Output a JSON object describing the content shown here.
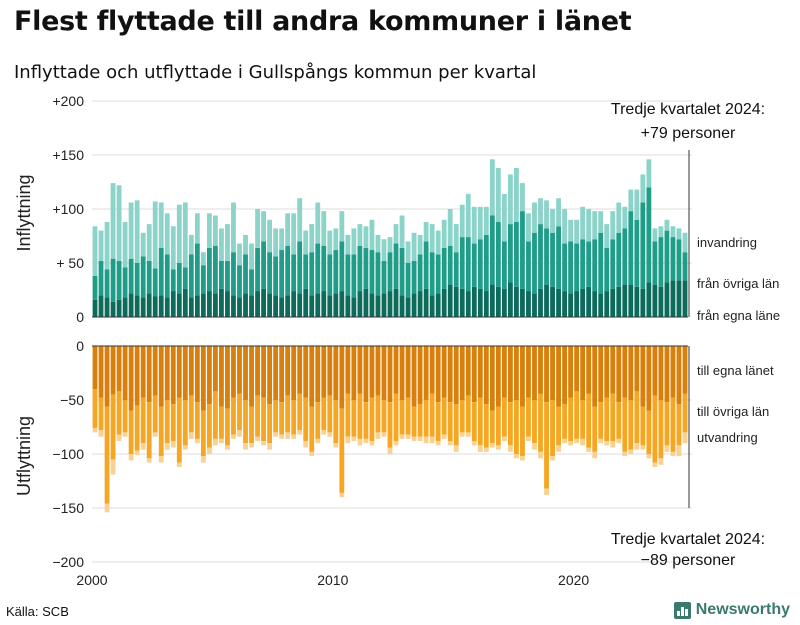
{
  "title": "Flest flyttade till andra kommuner i länet",
  "subtitle": "Inflyttade och utflyttade i Gullspångs kommun per kvartal",
  "source": "Källa: SCB",
  "brand": "Newsworthy",
  "chart_data": {
    "type": "bar",
    "stacked": true,
    "x_label": "",
    "x_ticks": [
      "2000",
      "2010",
      "2020"
    ],
    "y_ticks": [
      "+200",
      "+150",
      "+100",
      "+ 50",
      "0",
      "0",
      "−50",
      "−100",
      "−150",
      "−200"
    ],
    "ylim": [
      -200,
      200
    ],
    "start": "2000 Q1",
    "end": "2024 Q3",
    "panels": [
      {
        "ylabel": "Inflyttning",
        "colors": [
          "#0d6b5c",
          "#1f9d89",
          "#8cd3c9"
        ],
        "series": [
          {
            "name": "från egna läne",
            "values": [
              16,
              20,
              18,
              14,
              16,
              18,
              22,
              20,
              18,
              22,
              19,
              20,
              18,
              24,
              22,
              26,
              18,
              20,
              22,
              24,
              22,
              26,
              24,
              20,
              18,
              22,
              20,
              24,
              26,
              22,
              20,
              18,
              20,
              24,
              22,
              26,
              20,
              22,
              24,
              20,
              22,
              24,
              20,
              18,
              24,
              26,
              22,
              20,
              22,
              24,
              26,
              20,
              18,
              22,
              24,
              26,
              20,
              22,
              26,
              30,
              28,
              26,
              24,
              28,
              26,
              24,
              30,
              28,
              26,
              32,
              28,
              26,
              24,
              22,
              26,
              30,
              28,
              26,
              24,
              22,
              24,
              26,
              28,
              24,
              22,
              24,
              26,
              28,
              30,
              30,
              28,
              26,
              32,
              30,
              28,
              32,
              34,
              34,
              34
            ]
          },
          {
            "name": "från övriga län",
            "values": [
              22,
              32,
              26,
              40,
              36,
              28,
              32,
              30,
              38,
              30,
              26,
              44,
              40,
              20,
              28,
              20,
              40,
              48,
              26,
              40,
              44,
              26,
              28,
              40,
              30,
              36,
              24,
              40,
              44,
              38,
              36,
              44,
              46,
              34,
              48,
              32,
              40,
              46,
              42,
              38,
              40,
              46,
              38,
              40,
              42,
              38,
              40,
              40,
              30,
              36,
              42,
              44,
              32,
              30,
              34,
              44,
              40,
              36,
              38,
              36,
              32,
              48,
              50,
              40,
              46,
              52,
              64,
              60,
              44,
              54,
              60,
              72,
              46,
              56,
              60,
              52,
              50,
              58,
              44,
              48,
              44,
              46,
              42,
              48,
              56,
              40,
              46,
              50,
              52,
              68,
              62,
              80,
              88,
              40,
              46,
              48,
              40,
              38,
              26
            ]
          },
          {
            "name": "invandring",
            "values": [
              46,
              28,
              44,
              70,
              70,
              42,
              52,
              58,
              22,
              34,
              62,
              42,
              38,
              40,
              54,
              60,
              18,
              28,
              12,
              32,
              28,
              30,
              34,
              46,
              20,
              18,
              24,
              36,
              28,
              30,
              26,
              20,
              30,
              38,
              40,
              22,
              26,
              38,
              32,
              22,
              20,
              28,
              18,
              24,
              20,
              20,
              28,
              16,
              20,
              14,
              18,
              30,
              20,
              26,
              18,
              18,
              26,
              22,
              26,
              34,
              26,
              30,
              40,
              34,
              30,
              26,
              52,
              50,
              44,
              46,
              50,
              26,
              26,
              28,
              24,
              26,
              22,
              26,
              32,
              20,
              22,
              30,
              30,
              26,
              20,
              22,
              26,
              28,
              20,
              20,
              28,
              26,
              26,
              12,
              10,
              10,
              10,
              10,
              18
            ]
          }
        ]
      },
      {
        "ylabel": "Utflyttning",
        "colors": [
          "#d97f0b",
          "#f5a623",
          "#f7d293"
        ],
        "series": [
          {
            "name": "till egna länet",
            "values": [
              -40,
              -48,
              -56,
              -45,
              -42,
              -50,
              -60,
              -55,
              -48,
              -52,
              -46,
              -56,
              -50,
              -54,
              -48,
              -50,
              -46,
              -52,
              -60,
              -54,
              -42,
              -56,
              -58,
              -48,
              -44,
              -50,
              -56,
              -46,
              -48,
              -54,
              -50,
              -52,
              -46,
              -50,
              -44,
              -48,
              -56,
              -52,
              -48,
              -46,
              -50,
              -58,
              -44,
              -50,
              -44,
              -52,
              -48,
              -46,
              -50,
              -52,
              -44,
              -50,
              -48,
              -56,
              -54,
              -50,
              -44,
              -52,
              -48,
              -52,
              -54,
              -50,
              -46,
              -52,
              -48,
              -54,
              -60,
              -56,
              -48,
              -52,
              -50,
              -56,
              -48,
              -50,
              -44,
              -52,
              -50,
              -56,
              -54,
              -48,
              -42,
              -50,
              -44,
              -56,
              -52,
              -48,
              -44,
              -52,
              -48,
              -50,
              -42,
              -56,
              -60,
              -46,
              -50,
              -52,
              -48,
              -54,
              -44
            ]
          },
          {
            "name": "till övriga län",
            "values": [
              -36,
              -30,
              -90,
              -60,
              -40,
              -30,
              -40,
              -42,
              -42,
              -52,
              -34,
              -46,
              -40,
              -34,
              -60,
              -42,
              -34,
              -34,
              -42,
              -40,
              -44,
              -30,
              -34,
              -34,
              -34,
              -40,
              -34,
              -38,
              -40,
              -36,
              -30,
              -30,
              -34,
              -32,
              -34,
              -40,
              -42,
              -34,
              -30,
              -34,
              -40,
              -78,
              -40,
              -34,
              -42,
              -34,
              -40,
              -34,
              -30,
              -42,
              -44,
              -32,
              -34,
              -28,
              -30,
              -34,
              -40,
              -36,
              -34,
              -36,
              -38,
              -30,
              -34,
              -36,
              -44,
              -40,
              -30,
              -36,
              -36,
              -40,
              -50,
              -46,
              -36,
              -40,
              -54,
              -80,
              -52,
              -36,
              -32,
              -40,
              -44,
              -36,
              -50,
              -42,
              -34,
              -40,
              -44,
              -34,
              -50,
              -46,
              -48,
              -36,
              -40,
              -62,
              -54,
              -40,
              -50,
              -38,
              -36
            ]
          },
          {
            "name": "utvandring",
            "values": [
              -4,
              -6,
              -8,
              -14,
              -6,
              -4,
              -6,
              -4,
              -6,
              -4,
              -4,
              -6,
              -6,
              -6,
              -4,
              -4,
              -6,
              -4,
              -6,
              -6,
              -6,
              -4,
              -4,
              -4,
              -6,
              -6,
              -4,
              -4,
              -4,
              -6,
              -4,
              -4,
              -6,
              -4,
              -4,
              -6,
              -4,
              -4,
              -4,
              -4,
              -4,
              -4,
              -6,
              -4,
              -6,
              -4,
              -4,
              -6,
              -4,
              -6,
              -4,
              -4,
              -4,
              -4,
              -4,
              -6,
              -6,
              -4,
              -4,
              -4,
              -6,
              -4,
              -4,
              -4,
              -6,
              -4,
              -4,
              -4,
              -4,
              -6,
              -4,
              -4,
              -4,
              -6,
              -6,
              -6,
              -4,
              -6,
              -4,
              -4,
              -4,
              -6,
              -4,
              -6,
              -4,
              -4,
              -6,
              -4,
              -4,
              -4,
              -6,
              -4,
              -4,
              -4,
              -6,
              -6,
              -4,
              -10,
              -10
            ]
          }
        ]
      }
    ],
    "annotations": [
      {
        "panel": 0,
        "text": [
          "Tredje kvartalet 2024:",
          "+79 personer"
        ]
      },
      {
        "panel": 1,
        "text": [
          "Tredje kvartalet 2024:",
          "−89 personer"
        ]
      }
    ]
  }
}
